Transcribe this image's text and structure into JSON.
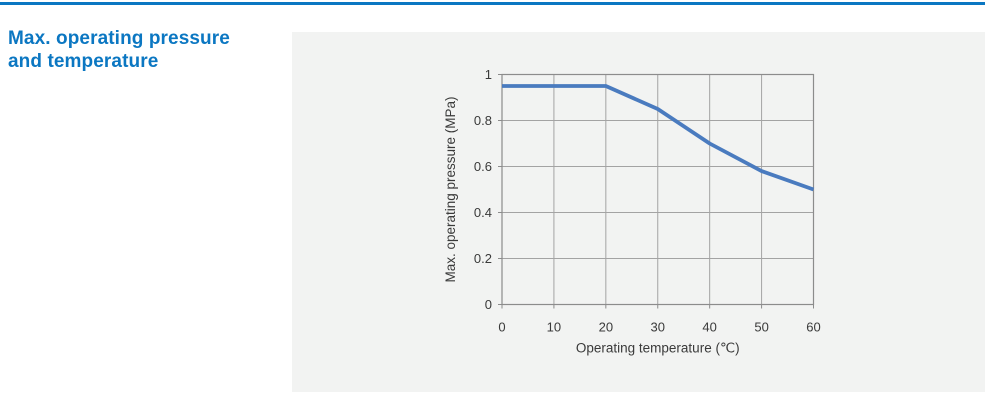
{
  "page": {
    "accent_color": "#0b77c2",
    "panel_bg": "#f2f3f2",
    "background": "#ffffff"
  },
  "header": {
    "title": "Max. operating pressure and temperature",
    "title_line1": "Max. operating pressure",
    "title_line2": "and temperature"
  },
  "chart_data": {
    "type": "line",
    "title": "",
    "xlabel": "Operating temperature (℃)",
    "ylabel": "Max. operating pressure (MPa)",
    "x": [
      0,
      10,
      20,
      30,
      40,
      50,
      60
    ],
    "series": [
      {
        "name": "Max. operating pressure",
        "values": [
          0.95,
          0.95,
          0.95,
          0.85,
          0.7,
          0.58,
          0.5
        ]
      }
    ],
    "xlim": [
      0,
      60
    ],
    "ylim": [
      0,
      1
    ],
    "x_ticks": [
      0,
      10,
      20,
      30,
      40,
      50,
      60
    ],
    "y_ticks": [
      0,
      0.2,
      0.4,
      0.6,
      0.8,
      1
    ],
    "x_tick_labels": [
      "0",
      "10",
      "20",
      "30",
      "40",
      "50",
      "60"
    ],
    "y_tick_labels": [
      "0",
      "0.2",
      "0.4",
      "0.6",
      "0.8",
      "1"
    ],
    "grid": true,
    "legend": "none",
    "line_color": "#4a7bbf",
    "grid_color": "#a3a3a3",
    "border_color": "#8c8c8c",
    "text_color": "#3a3a3a"
  }
}
